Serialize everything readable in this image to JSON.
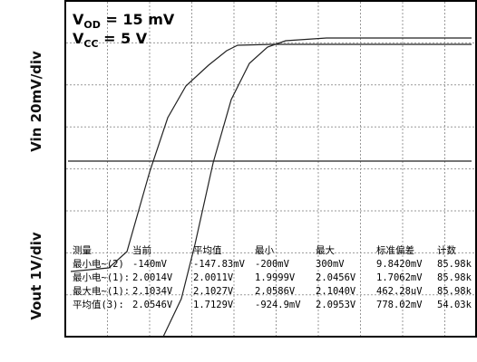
{
  "side_labels": {
    "top": "Vin 20mV/div",
    "bottom": "Vout 1V/div"
  },
  "conditions": [
    {
      "symbol": "V",
      "subscript": "OD",
      "value": " = 15 mV"
    },
    {
      "symbol": "V",
      "subscript": "CC",
      "value": " = 5 V"
    }
  ],
  "table": {
    "header": [
      "测量",
      "当前",
      "平均值",
      "最小",
      "最大",
      "标准偏差",
      "计数"
    ],
    "rows": [
      [
        "最小电~(2)",
        "-140mV",
        "-147.83mV",
        "-200mV",
        "300mV",
        "9.8420mV",
        "85.98k"
      ],
      [
        "最小电~(1):",
        "2.0014V",
        "2.0011V",
        "1.9999V",
        "2.0456V",
        "1.7062mV",
        "85.98k"
      ],
      [
        "最大电~(1):",
        "2.1034V",
        "2.1027V",
        "2.0586V",
        "2.1040V",
        "462.28uV",
        "85.98k"
      ],
      [
        "平均值(3):",
        "2.0546V",
        "1.7129V",
        "-924.9mV",
        "2.0953V",
        "778.02mV",
        "54.03k"
      ]
    ]
  }
}
